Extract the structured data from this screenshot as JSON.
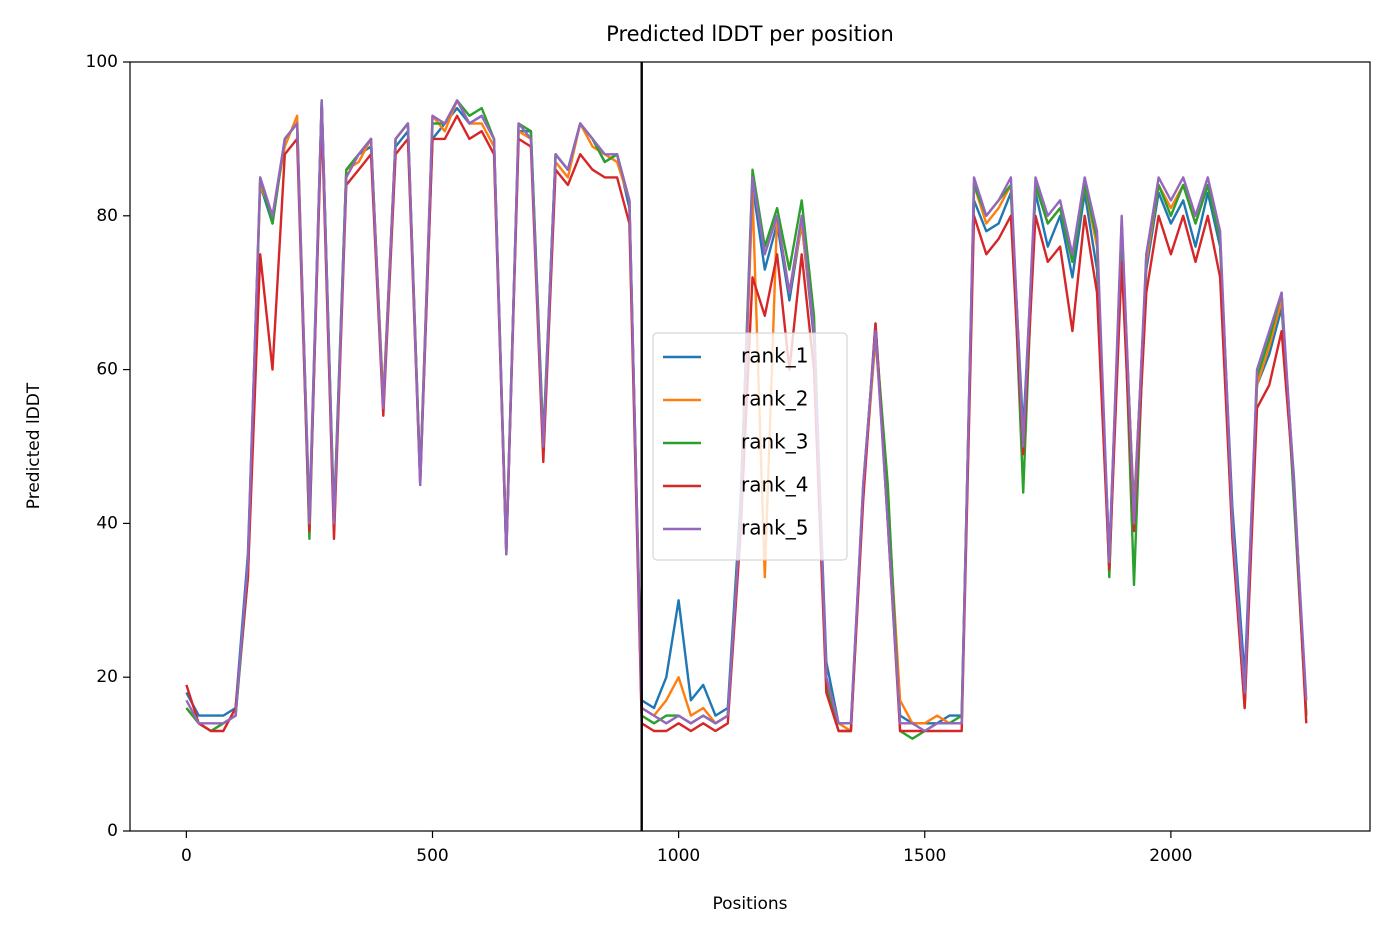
{
  "chart_data": {
    "type": "line",
    "title": "Predicted lDDT per position",
    "xlabel": "Positions",
    "ylabel": "Predicted lDDT",
    "x": [
      0,
      25,
      50,
      75,
      100,
      125,
      150,
      175,
      200,
      225,
      250,
      275,
      300,
      325,
      350,
      375,
      400,
      425,
      450,
      475,
      500,
      525,
      550,
      575,
      600,
      625,
      650,
      675,
      700,
      725,
      750,
      775,
      800,
      825,
      850,
      875,
      900,
      925,
      950,
      975,
      1000,
      1025,
      1050,
      1075,
      1100,
      1125,
      1150,
      1175,
      1200,
      1225,
      1250,
      1275,
      1300,
      1325,
      1350,
      1375,
      1400,
      1425,
      1450,
      1475,
      1500,
      1525,
      1550,
      1575,
      1600,
      1625,
      1650,
      1675,
      1700,
      1725,
      1750,
      1775,
      1800,
      1825,
      1850,
      1875,
      1900,
      1925,
      1950,
      1975,
      2000,
      2025,
      2050,
      2075,
      2100,
      2125,
      2150,
      2175,
      2200,
      2225,
      2250,
      2275
    ],
    "series": [
      {
        "name": "rank_1",
        "color": "#1f77b4",
        "values": [
          18,
          15,
          15,
          15,
          16,
          36,
          84,
          79,
          90,
          92,
          41,
          95,
          40,
          86,
          88,
          89,
          56,
          89,
          91,
          46,
          90,
          92,
          94,
          92,
          93,
          90,
          37,
          91,
          91,
          50,
          88,
          86,
          92,
          90,
          87,
          88,
          81,
          17,
          16,
          20,
          30,
          17,
          19,
          15,
          16,
          42,
          84,
          73,
          79,
          69,
          79,
          64,
          22,
          14,
          14,
          44,
          66,
          42,
          15,
          14,
          14,
          14,
          15,
          15,
          82,
          78,
          79,
          83,
          52,
          83,
          76,
          80,
          72,
          83,
          73,
          36,
          77,
          42,
          73,
          83,
          79,
          82,
          76,
          83,
          76,
          42,
          20,
          58,
          62,
          68,
          46,
          15
        ]
      },
      {
        "name": "rank_2",
        "color": "#ff7f0e",
        "values": [
          16,
          14,
          13,
          14,
          15,
          34,
          84,
          80,
          89,
          93,
          40,
          94,
          39,
          86,
          87,
          90,
          56,
          90,
          92,
          46,
          93,
          91,
          95,
          92,
          92,
          89,
          37,
          91,
          90,
          50,
          87,
          85,
          92,
          89,
          88,
          87,
          82,
          16,
          15,
          17,
          20,
          15,
          16,
          14,
          15,
          39,
          83,
          33,
          80,
          70,
          79,
          65,
          20,
          14,
          13,
          44,
          64,
          43,
          17,
          14,
          14,
          15,
          14,
          14,
          84,
          79,
          81,
          84,
          50,
          84,
          79,
          81,
          74,
          84,
          76,
          34,
          79,
          41,
          74,
          84,
          81,
          84,
          79,
          84,
          77,
          40,
          17,
          58,
          63,
          69,
          45,
          15
        ]
      },
      {
        "name": "rank_3",
        "color": "#2ca02c",
        "values": [
          16,
          14,
          13,
          14,
          15,
          33,
          85,
          79,
          90,
          92,
          38,
          95,
          41,
          86,
          88,
          90,
          55,
          90,
          92,
          46,
          92,
          92,
          95,
          93,
          94,
          90,
          36,
          92,
          91,
          51,
          88,
          86,
          92,
          90,
          87,
          88,
          82,
          15,
          14,
          15,
          15,
          14,
          15,
          14,
          15,
          41,
          86,
          76,
          81,
          73,
          82,
          67,
          19,
          13,
          13,
          45,
          65,
          45,
          13,
          12,
          13,
          14,
          14,
          15,
          84,
          80,
          82,
          84,
          44,
          84,
          79,
          81,
          74,
          84,
          77,
          33,
          79,
          32,
          75,
          84,
          80,
          84,
          79,
          84,
          77,
          39,
          16,
          59,
          64,
          70,
          43,
          15
        ]
      },
      {
        "name": "rank_4",
        "color": "#d62728",
        "values": [
          19,
          14,
          13,
          13,
          16,
          33,
          75,
          60,
          88,
          90,
          39,
          93,
          38,
          84,
          86,
          88,
          54,
          88,
          90,
          45,
          90,
          90,
          93,
          90,
          91,
          88,
          36,
          90,
          89,
          48,
          86,
          84,
          88,
          86,
          85,
          85,
          79,
          14,
          13,
          13,
          14,
          13,
          14,
          13,
          14,
          38,
          72,
          67,
          75,
          60,
          75,
          60,
          18,
          13,
          13,
          43,
          66,
          40,
          13,
          13,
          13,
          13,
          13,
          13,
          80,
          75,
          77,
          80,
          49,
          80,
          74,
          76,
          65,
          80,
          70,
          34,
          74,
          39,
          70,
          80,
          75,
          80,
          74,
          80,
          72,
          38,
          16,
          55,
          58,
          65,
          45,
          14
        ]
      },
      {
        "name": "rank_5",
        "color": "#9467bd",
        "values": [
          17,
          14,
          14,
          14,
          15,
          35,
          85,
          80,
          90,
          92,
          40,
          95,
          40,
          85,
          88,
          90,
          55,
          90,
          92,
          45,
          93,
          92,
          95,
          92,
          93,
          90,
          36,
          92,
          90,
          50,
          88,
          86,
          92,
          90,
          88,
          88,
          82,
          16,
          15,
          14,
          15,
          14,
          15,
          14,
          15,
          40,
          85,
          75,
          80,
          70,
          80,
          65,
          20,
          14,
          14,
          45,
          65,
          40,
          14,
          14,
          13,
          14,
          14,
          14,
          85,
          80,
          82,
          85,
          50,
          85,
          80,
          82,
          75,
          85,
          78,
          35,
          80,
          40,
          75,
          85,
          82,
          85,
          80,
          85,
          78,
          40,
          18,
          60,
          65,
          70,
          45,
          17
        ]
      }
    ],
    "vline": 925,
    "xlim": [
      -114.5,
      2404.5
    ],
    "xticks": [
      0,
      500,
      1000,
      1500,
      2000
    ],
    "ylim": [
      0,
      100
    ],
    "yticks": [
      0,
      20,
      40,
      60,
      80,
      100
    ],
    "legend_loc": "center"
  }
}
